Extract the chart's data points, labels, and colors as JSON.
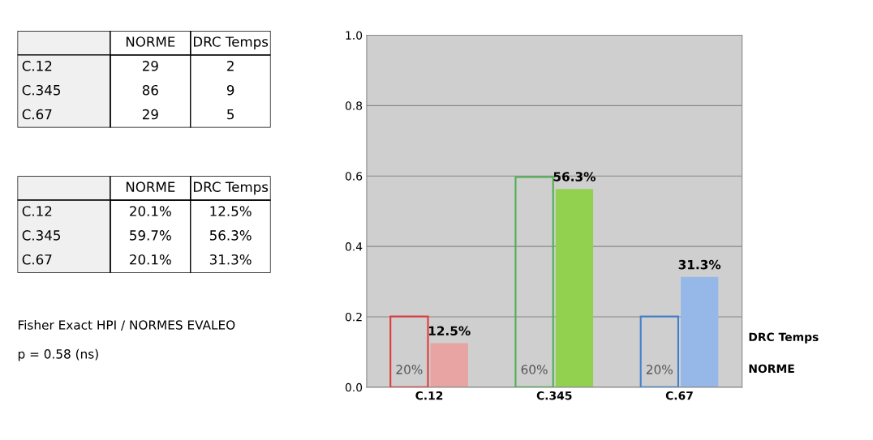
{
  "chart_data": [
    {
      "type": "other",
      "categories": [
        "C.12",
        "C.345",
        "C.67"
      ],
      "series": [
        {
          "name": "NORME",
          "values": [
            29,
            86,
            29
          ]
        },
        {
          "name": "DRC Temps",
          "values": [
            2,
            9,
            5
          ]
        }
      ],
      "data_labels": true
    },
    {
      "type": "other",
      "categories": [
        "C.12",
        "C.345",
        "C.67"
      ],
      "series": [
        {
          "name": "NORME",
          "values": [
            20.1,
            59.7,
            20.1
          ],
          "value_labels": [
            "20.1%",
            "59.7%",
            "20.1%"
          ]
        },
        {
          "name": "DRC Temps",
          "values": [
            12.5,
            56.3,
            31.3
          ],
          "value_labels": [
            "12.5%",
            "56.3%",
            "31.3%"
          ]
        }
      ],
      "annotations": [
        "Fisher Exact HPI / NORMES EVALEO",
        "p = 0.58 (ns)"
      ]
    },
    {
      "type": "bar",
      "categories": [
        "C.12",
        "C.345",
        "C.67"
      ],
      "series": [
        {
          "name": "NORME",
          "colors": [
            "#e03a3a",
            "#4cb050",
            "#3f7fd0"
          ],
          "values": [
            0.201,
            0.597,
            0.201
          ],
          "value_labels": [
            "20%",
            "60%",
            "20%"
          ]
        },
        {
          "name": "DRC Temps",
          "colors": [
            "#e8a3a3",
            "#92d050",
            "#95b8e8"
          ],
          "values": [
            0.125,
            0.563,
            0.313
          ],
          "value_labels": [
            "12.5%",
            "56.3%",
            "31.3%"
          ]
        }
      ],
      "ylim": [
        0,
        1
      ],
      "yticks": [
        {
          "value": 0,
          "label": "0.0"
        },
        {
          "value": 0.2,
          "label": "0.2"
        },
        {
          "value": 0.4,
          "label": "0.4"
        },
        {
          "value": 0.6,
          "label": "0.6"
        },
        {
          "value": 0.8,
          "label": "0.8"
        },
        {
          "value": 1,
          "label": "1.0"
        }
      ],
      "grid": "y"
    }
  ]
}
